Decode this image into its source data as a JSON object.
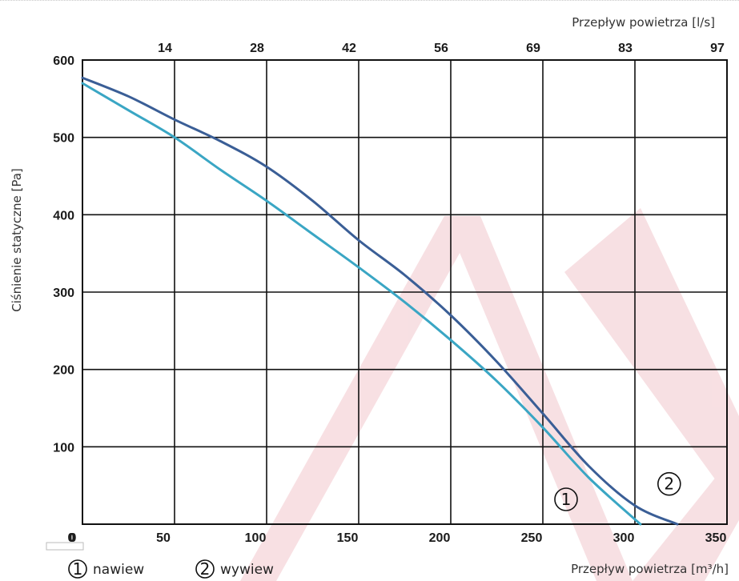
{
  "chart_data": {
    "type": "line",
    "title": "",
    "xlabel": "Przepływ powietrza [m³/h]",
    "x2label": "Przepływ powietrza [l/s]",
    "ylabel": "Ciśnienie statyczne [Pa]",
    "xlim": [
      0,
      350
    ],
    "ylim": [
      0,
      600
    ],
    "x_ticks": [
      "0",
      "50",
      "100",
      "150",
      "200",
      "250",
      "300",
      "350"
    ],
    "x2_ticks": [
      "14",
      "28",
      "42",
      "56",
      "69",
      "83",
      "97"
    ],
    "y_ticks": [
      "100",
      "200",
      "300",
      "400",
      "500",
      "600"
    ],
    "grid": true,
    "series": [
      {
        "name": "nawiew",
        "tag": "1",
        "color": "#3aa6c4",
        "points": [
          [
            0,
            570
          ],
          [
            25,
            535
          ],
          [
            50,
            500
          ],
          [
            75,
            458
          ],
          [
            100,
            418
          ],
          [
            125,
            375
          ],
          [
            150,
            332
          ],
          [
            175,
            287
          ],
          [
            200,
            238
          ],
          [
            225,
            185
          ],
          [
            250,
            125
          ],
          [
            275,
            60
          ],
          [
            303,
            0
          ]
        ]
      },
      {
        "name": "wywiew",
        "tag": "2",
        "color": "#3a5e96",
        "points": [
          [
            0,
            577
          ],
          [
            25,
            553
          ],
          [
            50,
            523
          ],
          [
            75,
            495
          ],
          [
            100,
            462
          ],
          [
            125,
            418
          ],
          [
            150,
            367
          ],
          [
            175,
            322
          ],
          [
            200,
            270
          ],
          [
            225,
            210
          ],
          [
            250,
            143
          ],
          [
            275,
            75
          ],
          [
            300,
            24
          ],
          [
            323,
            0
          ]
        ]
      }
    ],
    "legend": [
      {
        "tag": "1",
        "label": "nawiew"
      },
      {
        "tag": "2",
        "label": "wywiew"
      }
    ]
  }
}
